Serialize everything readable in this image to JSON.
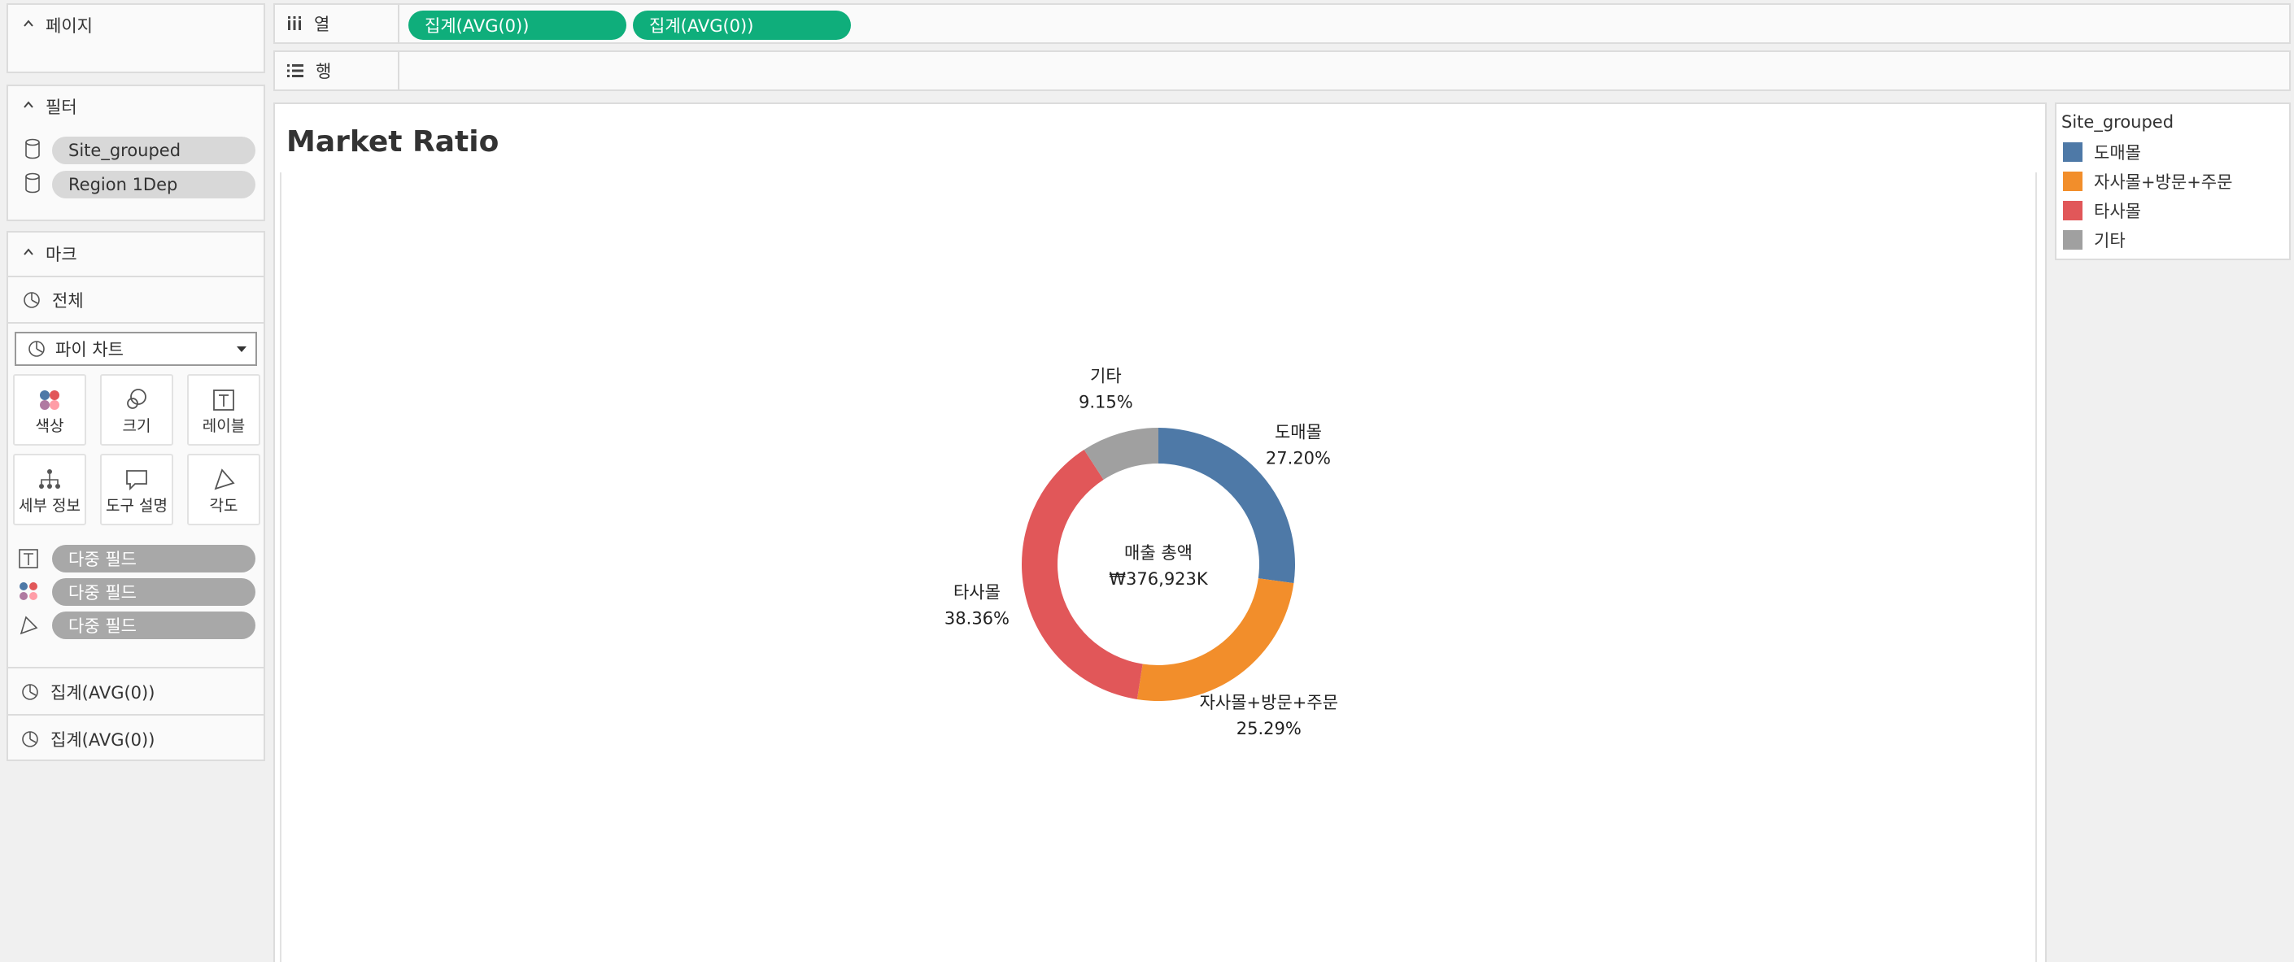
{
  "cards": {
    "pages": {
      "title": "페이지"
    },
    "filters": {
      "title": "필터",
      "items": [
        {
          "label": "Site_grouped"
        },
        {
          "label": "Region 1Dep"
        }
      ]
    },
    "marks": {
      "title": "마크",
      "all_label": "전체",
      "mark_type": "파이 차트",
      "buttons": {
        "color": "색상",
        "size": "크기",
        "label": "레이블",
        "detail": "세부 정보",
        "tooltip": "도구 설명",
        "angle": "각도"
      },
      "fields": [
        {
          "label": "다중 필드",
          "icon": "text-icon"
        },
        {
          "label": "다중 필드",
          "icon": "color-dots-icon"
        },
        {
          "label": "다중 필드",
          "icon": "angle-icon"
        }
      ],
      "measures": [
        {
          "label": "집계(AVG(0))"
        },
        {
          "label": "집계(AVG(0))"
        }
      ]
    }
  },
  "shelves": {
    "columns": {
      "label": "열",
      "pills": [
        "집계(AVG(0))",
        "집계(AVG(0))"
      ]
    },
    "rows": {
      "label": "행"
    }
  },
  "view": {
    "title": "Market Ratio"
  },
  "legend": {
    "title": "Site_grouped",
    "items": [
      {
        "label": "도매몰",
        "color": "#4e79a7"
      },
      {
        "label": "자사몰+방문+주문",
        "color": "#f28e2b"
      },
      {
        "label": "타사몰",
        "color": "#e15759"
      },
      {
        "label": "기타",
        "color": "#a0a0a0"
      }
    ]
  },
  "chart_data": {
    "type": "pie",
    "title": "Market Ratio",
    "center_label": "매출 총액",
    "center_value": "₩376,923K",
    "slices": [
      {
        "name": "도매몰",
        "value": 27.2,
        "pct_label": "27.20%",
        "color": "#4e79a7"
      },
      {
        "name": "자사몰+방문+주문",
        "value": 25.29,
        "pct_label": "25.29%",
        "color": "#f28e2b"
      },
      {
        "name": "타사몰",
        "value": 38.36,
        "pct_label": "38.36%",
        "color": "#e15759"
      },
      {
        "name": "기타",
        "value": 9.15,
        "pct_label": "9.15%",
        "color": "#a0a0a0"
      }
    ]
  }
}
